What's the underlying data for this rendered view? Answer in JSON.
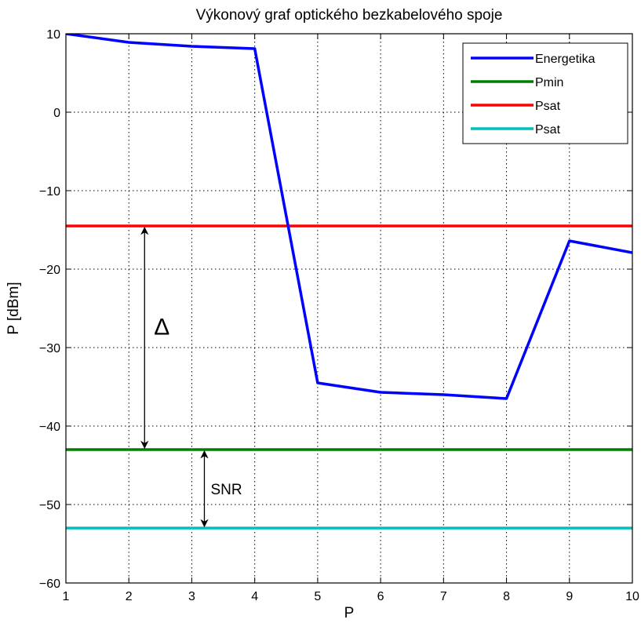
{
  "chart_data": {
    "type": "line",
    "title": "Výkonový graf optického bezkabelového spoje",
    "xlabel": "P",
    "ylabel": "P [dBm]",
    "xlim": [
      1,
      10
    ],
    "ylim": [
      -60,
      10
    ],
    "xticks": [
      1,
      2,
      3,
      4,
      5,
      6,
      7,
      8,
      9,
      10
    ],
    "yticks": [
      10,
      0,
      -10,
      -20,
      -30,
      -40,
      -50,
      -60
    ],
    "grid": true,
    "legend_position": "top-right",
    "series": [
      {
        "name": "Energetika",
        "color": "#0000ff",
        "x": [
          1,
          2,
          3,
          4,
          5,
          6,
          7,
          8,
          9,
          10
        ],
        "y": [
          10,
          8.9,
          8.4,
          8.1,
          -34.5,
          -35.7,
          -36,
          -36.5,
          -16.4,
          -17.9
        ]
      },
      {
        "name": "Pmin",
        "color": "#007f00",
        "x": [
          1,
          10
        ],
        "y": [
          -43,
          -43
        ]
      },
      {
        "name": "Psat",
        "color": "#ff0000",
        "x": [
          1,
          10
        ],
        "y": [
          -14.5,
          -14.5
        ]
      },
      {
        "name": "Psat",
        "color": "#00bfbf",
        "x": [
          1,
          10
        ],
        "y": [
          -53,
          -53
        ]
      }
    ],
    "annotations": [
      {
        "text": "Δ",
        "x_at": 2.25,
        "y_from": -14.5,
        "y_to": -43
      },
      {
        "text": "SNR",
        "x_at": 3.2,
        "y_from": -43,
        "y_to": -53
      }
    ]
  }
}
